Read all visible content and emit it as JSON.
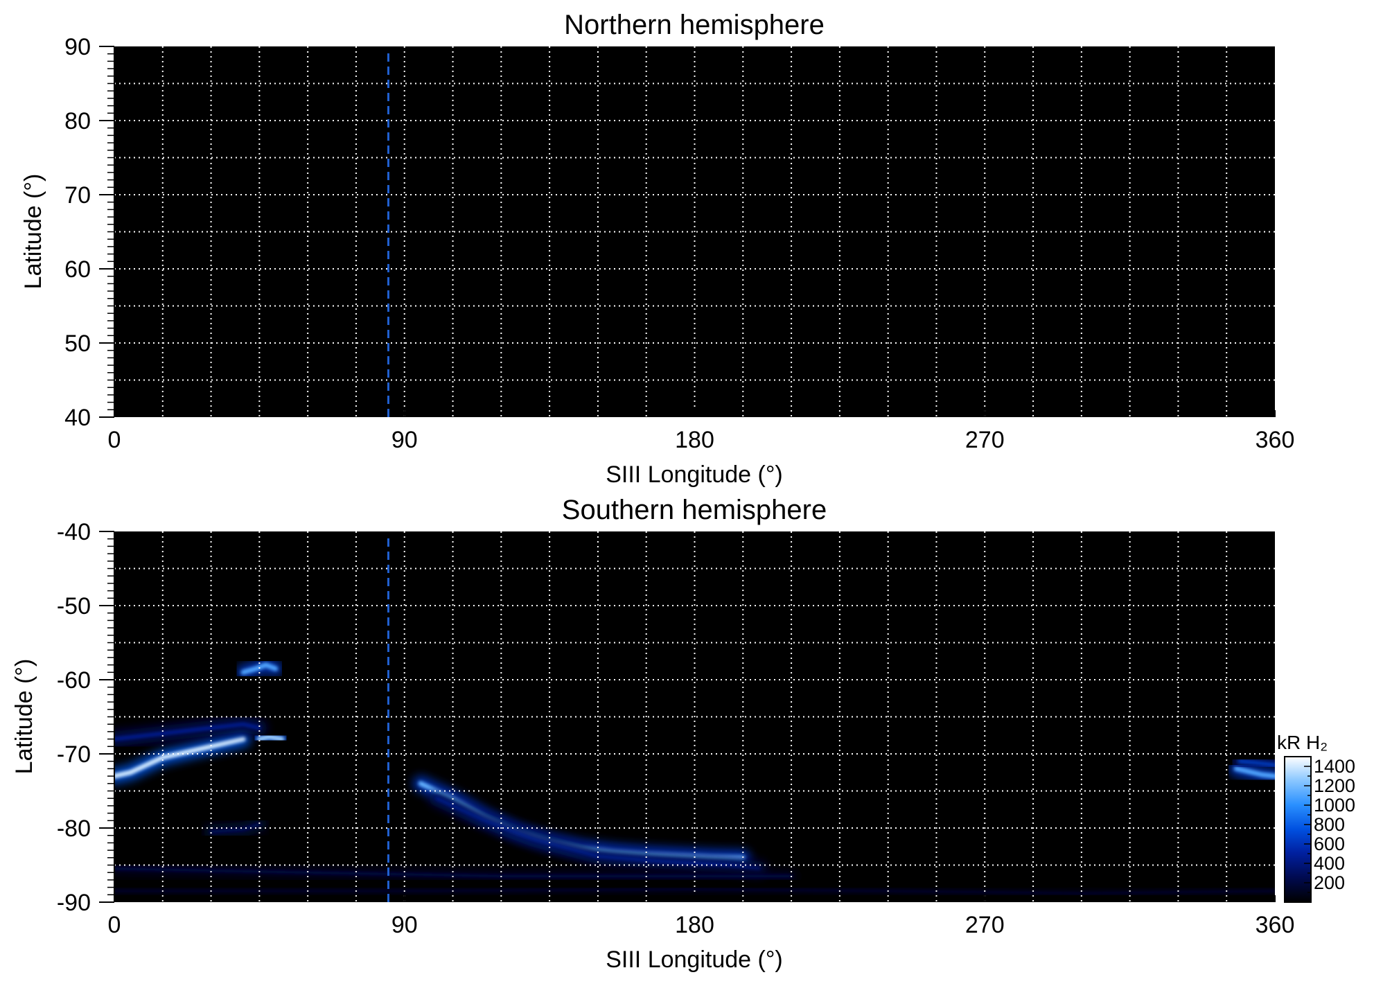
{
  "chart_data": [
    {
      "type": "heatmap",
      "title": "Northern hemisphere",
      "xlabel": "SIII Longitude (°)",
      "ylabel": "Latitude (°)",
      "xlim": [
        0,
        360
      ],
      "ylim": [
        40,
        90
      ],
      "xticks": [
        0,
        90,
        180,
        270,
        360
      ],
      "xtick_labels": [
        "0",
        "90",
        "180",
        "270",
        "360"
      ],
      "yticks": [
        90,
        80,
        70,
        60,
        50,
        40
      ],
      "ytick_labels": [
        "90",
        "80",
        "70",
        "60",
        "50",
        "40"
      ],
      "grid": true,
      "grid_x_step": 15,
      "grid_y_step": 5,
      "reference_line": {
        "longitude": 85,
        "color": "#2060d0",
        "style": "dashed"
      },
      "emission_features": []
    },
    {
      "type": "heatmap",
      "title": "Southern hemisphere",
      "xlabel": "SIII Longitude (°)",
      "ylabel": "Latitude (°)",
      "xlim": [
        0,
        360
      ],
      "ylim": [
        -90,
        -40
      ],
      "xticks": [
        0,
        90,
        180,
        270,
        360
      ],
      "xtick_labels": [
        "0",
        "90",
        "180",
        "270",
        "360"
      ],
      "yticks": [
        -40,
        -50,
        -60,
        -70,
        -80,
        -90
      ],
      "ytick_labels": [
        "-40",
        "-50",
        "-60",
        "-70",
        "-80",
        "-90"
      ],
      "grid": true,
      "grid_x_step": 15,
      "grid_y_step": 5,
      "reference_line": {
        "longitude": 85,
        "color": "#2060d0",
        "style": "dashed"
      },
      "emission_features": [
        {
          "name": "main-oval-dawn",
          "points": [
            [
              0,
              -73
            ],
            [
              5,
              -72.5
            ],
            [
              10,
              -71.5
            ],
            [
              15,
              -70.5
            ],
            [
              20,
              -70
            ],
            [
              25,
              -69.5
            ],
            [
              30,
              -69
            ],
            [
              35,
              -68.5
            ],
            [
              40,
              -68
            ]
          ],
          "intensity": 1400
        },
        {
          "name": "upper-streak",
          "points": [
            [
              0,
              -68
            ],
            [
              10,
              -67.5
            ],
            [
              20,
              -67
            ],
            [
              30,
              -66.5
            ],
            [
              40,
              -66
            ],
            [
              45,
              -66.5
            ]
          ],
          "intensity": 500
        },
        {
          "name": "bright-spot-a",
          "points": [
            [
              45,
              -68
            ],
            [
              48,
              -67.7
            ],
            [
              52,
              -68
            ]
          ],
          "intensity": 1300
        },
        {
          "name": "bright-spot-b",
          "points": [
            [
              40,
              -59
            ],
            [
              44,
              -58.5
            ],
            [
              47,
              -58
            ],
            [
              50,
              -58.5
            ]
          ],
          "intensity": 1100
        },
        {
          "name": "main-oval-arc",
          "points": [
            [
              95,
              -74
            ],
            [
              105,
              -76
            ],
            [
              115,
              -78.5
            ],
            [
              125,
              -80.5
            ],
            [
              135,
              -81.8
            ],
            [
              145,
              -82.7
            ],
            [
              155,
              -83.2
            ],
            [
              165,
              -83.5
            ],
            [
              175,
              -83.7
            ],
            [
              185,
              -83.9
            ],
            [
              195,
              -84
            ]
          ],
          "intensity": 1150
        },
        {
          "name": "arc-outer",
          "points": [
            [
              100,
              -76
            ],
            [
              115,
              -79
            ],
            [
              130,
              -81.5
            ],
            [
              150,
              -83.8
            ],
            [
              170,
              -84.5
            ],
            [
              190,
              -85
            ],
            [
              200,
              -85.5
            ]
          ],
          "intensity": 450
        },
        {
          "name": "right-edge-oval",
          "points": [
            [
              348,
              -72
            ],
            [
              352,
              -72.4
            ],
            [
              356,
              -72.8
            ],
            [
              360,
              -73
            ]
          ],
          "intensity": 1100
        },
        {
          "name": "right-edge-oval-b",
          "points": [
            [
              349,
              -71
            ],
            [
              354,
              -71.2
            ],
            [
              360,
              -71.5
            ]
          ],
          "intensity": 700
        },
        {
          "name": "polar-haze",
          "points": [
            [
              0,
              -85.5
            ],
            [
              60,
              -86
            ],
            [
              120,
              -86.5
            ],
            [
              180,
              -86.5
            ],
            [
              210,
              -86.5
            ]
          ],
          "intensity": 220
        },
        {
          "name": "polar-haze-b",
          "points": [
            [
              0,
              -88.5
            ],
            [
              90,
              -88.5
            ],
            [
              180,
              -88.3
            ],
            [
              240,
              -88.5
            ],
            [
              300,
              -88.8
            ],
            [
              360,
              -88.5
            ]
          ],
          "intensity": 130
        },
        {
          "name": "faint-patch",
          "points": [
            [
              30,
              -80.5
            ],
            [
              40,
              -80.2
            ],
            [
              45,
              -79.5
            ]
          ],
          "intensity": 300
        }
      ],
      "colorbar": {
        "label": "kR H₂",
        "ticks": [
          1400,
          1200,
          1000,
          800,
          600,
          400,
          200
        ],
        "tick_labels": [
          "1400",
          "1200",
          "1000",
          "800",
          "600",
          "400",
          "200"
        ],
        "range": [
          0,
          1500
        ],
        "colors": [
          "#000000",
          "#000a50",
          "#0020a0",
          "#0050e0",
          "#2a90ff",
          "#8cc8ff",
          "#ffffff"
        ]
      }
    }
  ]
}
